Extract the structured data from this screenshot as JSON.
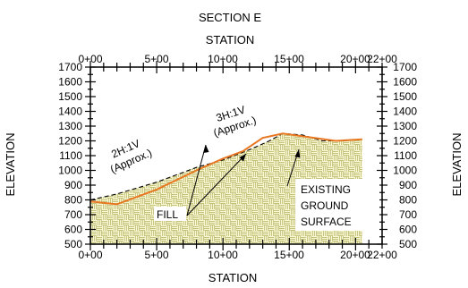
{
  "title": "SECTION E",
  "top_axis_label": "STATION",
  "bottom_axis_label": "STATION",
  "left_axis_label": "ELEVATION",
  "right_axis_label": "ELEVATION",
  "x_ticks": [
    {
      "value": 0,
      "label": "0+00"
    },
    {
      "value": 500,
      "label": "5+00"
    },
    {
      "value": 1000,
      "label": "10+00"
    },
    {
      "value": 1500,
      "label": "15+00"
    },
    {
      "value": 2000,
      "label": "20+00"
    },
    {
      "value": 2200,
      "label": "22+00"
    }
  ],
  "y_ticks": [
    "1700",
    "1600",
    "1500",
    "1400",
    "1300",
    "1200",
    "1100",
    "1000",
    "900",
    "800",
    "700",
    "600",
    "500"
  ],
  "x_range": [
    0,
    2200
  ],
  "y_range": [
    500,
    1700
  ],
  "annotations": {
    "slope_left_line1": "2H:1V",
    "slope_left_line2": "(Approx.)",
    "slope_right_line1": "3H:1V",
    "slope_right_line2": "(Approx.)",
    "fill_label": "FILL",
    "existing_line1": "EXISTING",
    "existing_line2": "GROUND",
    "existing_line3": "SURFACE"
  },
  "profiles": {
    "existing_ground": [
      [
        0,
        800
      ],
      [
        200,
        840
      ],
      [
        500,
        920
      ],
      [
        800,
        1020
      ],
      [
        1000,
        1070
      ],
      [
        1200,
        1140
      ],
      [
        1350,
        1200
      ],
      [
        1450,
        1250
      ],
      [
        1600,
        1240
      ],
      [
        1750,
        1200
      ],
      [
        1900,
        1200
      ],
      [
        2050,
        1210
      ]
    ],
    "finished_grade": [
      [
        0,
        790
      ],
      [
        200,
        770
      ],
      [
        500,
        870
      ],
      [
        800,
        1000
      ],
      [
        1000,
        1080
      ],
      [
        1150,
        1130
      ],
      [
        1300,
        1220
      ],
      [
        1450,
        1250
      ],
      [
        1650,
        1225
      ],
      [
        1850,
        1200
      ],
      [
        2050,
        1210
      ]
    ]
  },
  "colors": {
    "fill_hatch_bg": "#fbf8d6",
    "fill_hatch_line": "#c2c27a",
    "grade_line": "#e87722",
    "existing_line": "#000000"
  }
}
